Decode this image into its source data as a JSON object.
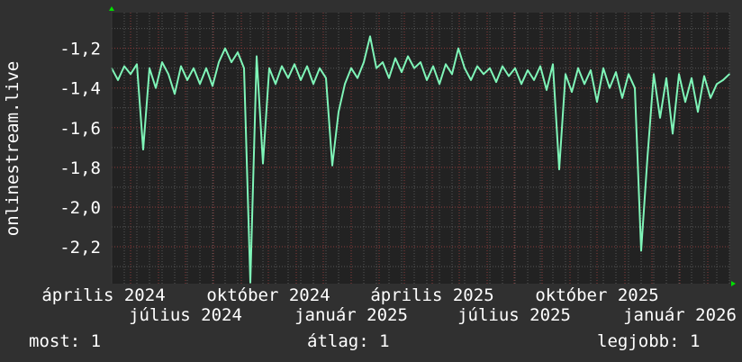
{
  "chart_data": {
    "type": "line",
    "ylabel": "onlinestream.live",
    "ylim": [
      -2.386,
      -1.02
    ],
    "yticks": [
      "-1,2",
      "-1,4",
      "-1,6",
      "-1,8",
      "-2,0",
      "-2,2"
    ],
    "ytick_values": [
      -1.2,
      -1.4,
      -1.6,
      -1.8,
      -2.0,
      -2.2
    ],
    "xlim": [
      "2024-04-10",
      "2026-02-25"
    ],
    "xtick_labels": [
      {
        "date": "2024-04-01",
        "label": "április 2024"
      },
      {
        "date": "2024-07-01",
        "label": "július 2024"
      },
      {
        "date": "2024-10-01",
        "label": "október 2024"
      },
      {
        "date": "2025-01-01",
        "label": "január 2025"
      },
      {
        "date": "2025-04-01",
        "label": "április 2025"
      },
      {
        "date": "2025-07-01",
        "label": "július 2025"
      },
      {
        "date": "2025-10-01",
        "label": "október 2025"
      },
      {
        "date": "2026-01-01",
        "label": "január 2026"
      }
    ],
    "grid": true,
    "colors": {
      "line": "#7ff5b8",
      "background": "#303030",
      "plot_background": "#222222",
      "major_grid": "#8a3a3a",
      "minor_grid": "#555555",
      "arrow": "#00e000"
    },
    "series": [
      {
        "x": [
          "2024-04-10",
          "2024-04-17",
          "2024-04-24",
          "2024-05-01",
          "2024-05-08",
          "2024-05-15",
          "2024-05-22",
          "2024-05-29",
          "2024-06-05",
          "2024-06-12",
          "2024-06-19",
          "2024-06-26",
          "2024-07-03",
          "2024-07-10",
          "2024-07-17",
          "2024-07-24",
          "2024-07-31",
          "2024-08-07",
          "2024-08-14",
          "2024-08-21",
          "2024-08-28",
          "2024-09-04",
          "2024-09-11",
          "2024-09-18",
          "2024-09-25",
          "2024-10-02",
          "2024-10-09",
          "2024-10-16",
          "2024-10-23",
          "2024-10-30",
          "2024-11-06",
          "2024-11-13",
          "2024-11-20",
          "2024-11-27",
          "2024-12-04",
          "2024-12-11",
          "2024-12-18",
          "2024-12-25",
          "2025-01-01",
          "2025-01-08",
          "2025-01-15",
          "2025-01-22",
          "2025-01-29",
          "2025-02-05",
          "2025-02-12",
          "2025-02-19",
          "2025-02-26",
          "2025-03-05",
          "2025-03-12",
          "2025-03-19",
          "2025-03-26",
          "2025-04-02",
          "2025-04-09",
          "2025-04-16",
          "2025-04-23",
          "2025-04-30",
          "2025-05-07",
          "2025-05-14",
          "2025-05-21",
          "2025-05-28",
          "2025-06-04",
          "2025-06-11",
          "2025-06-18",
          "2025-06-25",
          "2025-07-02",
          "2025-07-09",
          "2025-07-16",
          "2025-07-23",
          "2025-07-30",
          "2025-08-06",
          "2025-08-13",
          "2025-08-20",
          "2025-08-27",
          "2025-09-03",
          "2025-09-10",
          "2025-09-17",
          "2025-09-24",
          "2025-10-01",
          "2025-10-08",
          "2025-10-15",
          "2025-10-22",
          "2025-10-29",
          "2025-11-05",
          "2025-11-12",
          "2025-11-19",
          "2025-11-26",
          "2025-12-03",
          "2025-12-10",
          "2025-12-17",
          "2025-12-24",
          "2025-12-31",
          "2026-01-07",
          "2026-01-14",
          "2026-01-21",
          "2026-01-28",
          "2026-02-04",
          "2026-02-11",
          "2026-02-18",
          "2026-02-25"
        ],
        "y": [
          -1.3,
          -1.36,
          -1.29,
          -1.33,
          -1.28,
          -1.71,
          -1.3,
          -1.4,
          -1.27,
          -1.33,
          -1.43,
          -1.29,
          -1.36,
          -1.3,
          -1.38,
          -1.3,
          -1.39,
          -1.27,
          -1.2,
          -1.27,
          -1.22,
          -1.3,
          -2.38,
          -1.24,
          -1.78,
          -1.3,
          -1.38,
          -1.29,
          -1.35,
          -1.28,
          -1.36,
          -1.29,
          -1.38,
          -1.3,
          -1.35,
          -1.79,
          -1.52,
          -1.38,
          -1.3,
          -1.35,
          -1.27,
          -1.14,
          -1.3,
          -1.27,
          -1.35,
          -1.25,
          -1.32,
          -1.24,
          -1.3,
          -1.27,
          -1.36,
          -1.29,
          -1.38,
          -1.28,
          -1.33,
          -1.2,
          -1.3,
          -1.36,
          -1.29,
          -1.33,
          -1.3,
          -1.37,
          -1.29,
          -1.34,
          -1.3,
          -1.38,
          -1.31,
          -1.36,
          -1.29,
          -1.41,
          -1.28,
          -1.81,
          -1.33,
          -1.42,
          -1.3,
          -1.38,
          -1.31,
          -1.47,
          -1.3,
          -1.4,
          -1.32,
          -1.45,
          -1.33,
          -1.4,
          -2.22,
          -1.75,
          -1.33,
          -1.55,
          -1.35,
          -1.63,
          -1.33,
          -1.47,
          -1.35,
          -1.52,
          -1.34,
          -1.45,
          -1.38,
          -1.36,
          -1.33
        ]
      }
    ]
  },
  "legend": {
    "current": "most: 1",
    "average": "átlag: 1",
    "max": "legjobb: 1"
  }
}
